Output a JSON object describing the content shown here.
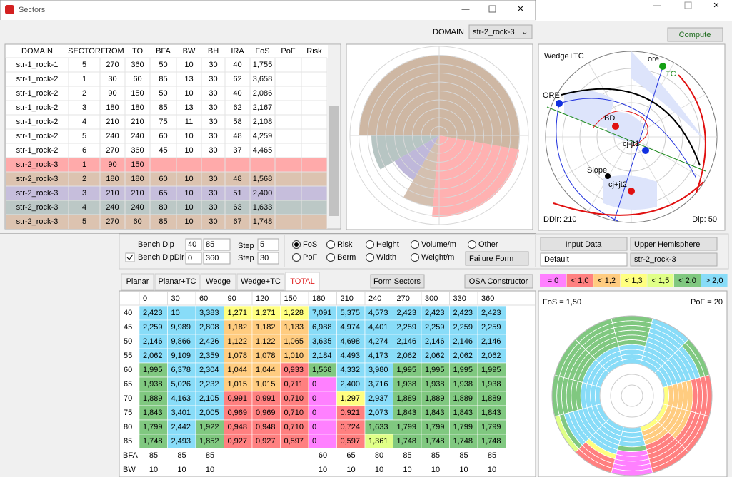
{
  "window": {
    "title": "Sectors",
    "domain_label": "DOMAIN",
    "domain_value": "str-2_rock-3"
  },
  "main": {
    "compute": "Compute"
  },
  "sectors_table": {
    "headers": [
      "DOMAIN",
      "SECTOR",
      "FROM",
      "TO",
      "BFA",
      "BW",
      "BH",
      "IRA",
      "FoS",
      "PoF",
      "Risk"
    ],
    "rows": [
      {
        "cells": [
          "str-1_rock-1",
          5,
          270,
          360,
          50,
          10,
          30,
          40,
          "1,755"
        ]
      },
      {
        "cells": [
          "str-1_rock-2",
          1,
          30,
          60,
          85,
          13,
          30,
          62,
          "3,658"
        ]
      },
      {
        "cells": [
          "str-1_rock-2",
          2,
          90,
          150,
          50,
          10,
          30,
          40,
          "2,086"
        ]
      },
      {
        "cells": [
          "str-1_rock-2",
          3,
          180,
          180,
          85,
          13,
          30,
          62,
          "2,167"
        ]
      },
      {
        "cells": [
          "str-1_rock-2",
          4,
          210,
          210,
          75,
          11,
          30,
          58,
          "2,108"
        ]
      },
      {
        "cells": [
          "str-1_rock-2",
          5,
          240,
          240,
          60,
          10,
          30,
          48,
          "4,259"
        ]
      },
      {
        "cells": [
          "str-1_rock-2",
          6,
          270,
          360,
          45,
          10,
          30,
          37,
          "4,465"
        ]
      },
      {
        "cells": [
          "str-2_rock-3",
          1,
          90,
          150
        ],
        "color": "#ffaaaa"
      },
      {
        "cells": [
          "str-2_rock-3",
          2,
          180,
          180,
          60,
          10,
          30,
          48,
          "1,568"
        ],
        "color": "#dcc3b0"
      },
      {
        "cells": [
          "str-2_rock-3",
          3,
          210,
          210,
          65,
          10,
          30,
          51,
          "2,400"
        ],
        "color": "#c6bedc"
      },
      {
        "cells": [
          "str-2_rock-3",
          4,
          240,
          240,
          80,
          10,
          30,
          63,
          "1,633"
        ],
        "color": "#bcc8c6"
      },
      {
        "cells": [
          "str-2_rock-3",
          5,
          270,
          60,
          85,
          10,
          30,
          67,
          "1,748"
        ],
        "color": "#dcc3b0"
      }
    ]
  },
  "stereonet": {
    "title": "Wedge+TC",
    "labels": [
      "ore",
      "TC",
      "ORE",
      "BD",
      "cj-jt1",
      "Slope",
      "cj+jt2"
    ],
    "ddir": "DDir: 210",
    "dip": "Dip: 50"
  },
  "controls": {
    "bench_dip": "Bench Dip",
    "bench_dip_from": 40,
    "bench_dip_to": 85,
    "bench_dip_step_label": "Step",
    "bench_dip_step": 5,
    "bench_dipdir": "Bench DipDir",
    "bench_dipdir_from": 0,
    "bench_dipdir_to": 360,
    "bench_dipdir_step_label": "Step",
    "bench_dipdir_step": 30,
    "radios": [
      {
        "label": "FoS",
        "selected": true
      },
      {
        "label": "Risk"
      },
      {
        "label": "Height"
      },
      {
        "label": "Volume/m"
      },
      {
        "label": "Other"
      },
      {
        "label": "PoF"
      },
      {
        "label": "Berm"
      },
      {
        "label": "Width"
      },
      {
        "label": "Weight/m"
      }
    ],
    "failure_form": "Failure Form",
    "input_data": "Input Data",
    "hemisphere": "Upper Hemisphere",
    "preset": "Default",
    "domain": "str-2_rock-3"
  },
  "tabs": [
    {
      "label": "Planar"
    },
    {
      "label": "Planar+TC"
    },
    {
      "label": "Wedge"
    },
    {
      "label": "Wedge+TC"
    },
    {
      "label": "TOTAL",
      "active": true
    }
  ],
  "buttons": {
    "form_sectors": "Form Sectors",
    "osa": "OSA Constructor"
  },
  "legend": [
    {
      "label": "= 0",
      "color": "#ff80ff"
    },
    {
      "label": "< 1,0",
      "color": "#ff8080"
    },
    {
      "label": "< 1,2",
      "color": "#ffcc80"
    },
    {
      "label": "< 1,3",
      "color": "#ffff80"
    },
    {
      "label": "< 1,5",
      "color": "#e0ff88"
    },
    {
      "label": "< 2,0",
      "color": "#80c880"
    },
    {
      "label": "> 2,0",
      "color": "#88dcf8"
    }
  ],
  "result_table": {
    "columns": [
      0,
      30,
      60,
      90,
      120,
      150,
      180,
      210,
      240,
      270,
      300,
      330,
      360
    ],
    "rows": [
      {
        "label": 40,
        "values": [
          "2,423",
          10,
          "3,383",
          "1,271",
          "1,271",
          "1,228",
          "7,091",
          "5,375",
          "4,573",
          "2,423",
          "2,423",
          "2,423",
          "2,423"
        ]
      },
      {
        "label": 45,
        "values": [
          "2,259",
          "9,989",
          "2,808",
          "1,182",
          "1,182",
          "1,133",
          "6,988",
          "4,974",
          "4,401",
          "2,259",
          "2,259",
          "2,259",
          "2,259"
        ]
      },
      {
        "label": 50,
        "values": [
          "2,146",
          "9,866",
          "2,426",
          "1,122",
          "1,122",
          "1,065",
          "3,635",
          "4,698",
          "4,274",
          "2,146",
          "2,146",
          "2,146",
          "2,146"
        ]
      },
      {
        "label": 55,
        "values": [
          "2,062",
          "9,109",
          "2,359",
          "1,078",
          "1,078",
          "1,010",
          "2,184",
          "4,493",
          "4,173",
          "2,062",
          "2,062",
          "2,062",
          "2,062"
        ]
      },
      {
        "label": 60,
        "values": [
          "1,995",
          "6,378",
          "2,304",
          "1,044",
          "1,044",
          "0,933",
          "1,568",
          "4,332",
          "3,980",
          "1,995",
          "1,995",
          "1,995",
          "1,995"
        ]
      },
      {
        "label": 65,
        "values": [
          "1,938",
          "5,026",
          "2,232",
          "1,015",
          "1,015",
          "0,711",
          0,
          "2,400",
          "3,716",
          "1,938",
          "1,938",
          "1,938",
          "1,938"
        ]
      },
      {
        "label": 70,
        "values": [
          "1,889",
          "4,163",
          "2,105",
          "0,991",
          "0,991",
          "0,710",
          0,
          "1,297",
          "2,937",
          "1,889",
          "1,889",
          "1,889",
          "1,889"
        ]
      },
      {
        "label": 75,
        "values": [
          "1,843",
          "3,401",
          "2,005",
          "0,969",
          "0,969",
          "0,710",
          0,
          "0,921",
          "2,073",
          "1,843",
          "1,843",
          "1,843",
          "1,843"
        ]
      },
      {
        "label": 80,
        "values": [
          "1,799",
          "2,442",
          "1,922",
          "0,948",
          "0,948",
          "0,710",
          0,
          "0,724",
          "1,633",
          "1,799",
          "1,799",
          "1,799",
          "1,799"
        ]
      },
      {
        "label": 85,
        "values": [
          "1,748",
          "2,493",
          "1,852",
          "0,927",
          "0,927",
          "0,597",
          0,
          "0,597",
          "1,361",
          "1,748",
          "1,748",
          "1,748",
          "1,748"
        ]
      }
    ],
    "bfa": {
      "label": "BFA",
      "values": [
        85,
        85,
        85,
        null,
        null,
        null,
        60,
        65,
        80,
        85,
        85,
        85,
        85
      ]
    },
    "bw": {
      "label": "BW",
      "values": [
        10,
        10,
        10,
        null,
        null,
        null,
        10,
        10,
        10,
        10,
        10,
        10,
        10
      ]
    }
  },
  "ring_chart": {
    "fos": "FoS = 1,50",
    "pof": "PoF = 20"
  }
}
